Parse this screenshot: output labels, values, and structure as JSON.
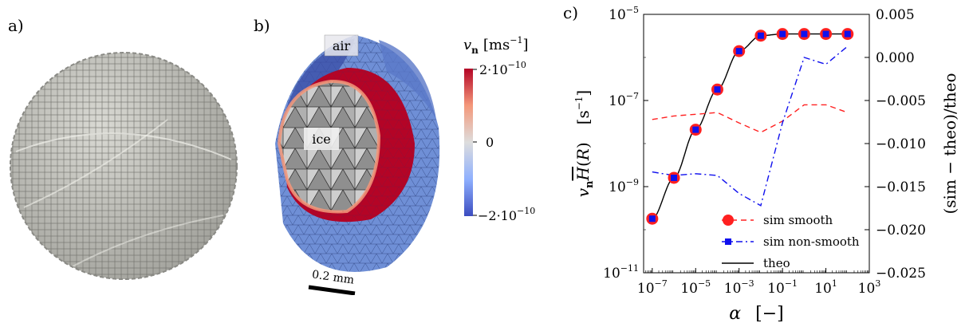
{
  "panels": {
    "a": {
      "label": "a)"
    },
    "b": {
      "label": "b)",
      "air_label": "air",
      "ice_label": "ice",
      "scale_bar_label": "0.2 mm",
      "colorbar": {
        "title_var": "v",
        "title_sub": "n",
        "title_unit": "[ms",
        "title_unit_exp": "−1",
        "title_unit_close": "]",
        "max_label": "2·10",
        "max_exp": "−10",
        "mid_label": "0",
        "min_label": "−2·10",
        "min_exp": "−10",
        "colors": [
          "#3b4cc0",
          "#8fb0fe",
          "#dddddd",
          "#f4987a",
          "#b40426"
        ]
      }
    },
    "c": {
      "label": "c)"
    }
  },
  "chart_data": {
    "type": "line",
    "x_scale": "log",
    "y_scale": "log",
    "x": [
      1e-07,
      1e-06,
      1e-05,
      0.0001,
      0.001,
      0.01,
      0.1,
      1,
      10,
      100
    ],
    "xlim": [
      4e-08,
      1000
    ],
    "ylim": [
      1e-11,
      1e-05
    ],
    "ylim_right": [
      -0.025,
      0.005
    ],
    "xlabel": "α   [−]",
    "ylabel": "v_n H(R)   [s⁻¹]",
    "ylabel_right": "(sim − theo)/theo",
    "x_ticks": [
      {
        "value": 1e-07,
        "base": "10",
        "exp": "−7"
      },
      {
        "value": 1e-05,
        "base": "10",
        "exp": "−5"
      },
      {
        "value": 0.001,
        "base": "10",
        "exp": "−3"
      },
      {
        "value": 0.1,
        "base": "10",
        "exp": "−1"
      },
      {
        "value": 10,
        "base": "10",
        "exp": "1"
      },
      {
        "value": 1000,
        "base": "10",
        "exp": "3"
      }
    ],
    "y_ticks": [
      {
        "value": 1e-05,
        "base": "10",
        "exp": "−5"
      },
      {
        "value": 1e-07,
        "base": "10",
        "exp": "−7"
      },
      {
        "value": 1e-09,
        "base": "10",
        "exp": "−9"
      },
      {
        "value": 1e-11,
        "base": "10",
        "exp": "−11"
      }
    ],
    "y_ticks_right": [
      {
        "value": 0.005,
        "label": "0.005"
      },
      {
        "value": 0.0,
        "label": "0.000"
      },
      {
        "value": -0.005,
        "label": "−0.005"
      },
      {
        "value": -0.01,
        "label": "−0.010"
      },
      {
        "value": -0.015,
        "label": "−0.015"
      },
      {
        "value": -0.02,
        "label": "−0.020"
      },
      {
        "value": -0.025,
        "label": "−0.025"
      }
    ],
    "series": [
      {
        "name": "sim smooth",
        "axis": "left",
        "style": "marker",
        "marker": "circle",
        "color": "#ff2020",
        "values": [
          1.8e-10,
          1.6e-09,
          2.1e-08,
          1.8e-07,
          1.4e-06,
          3.2e-06,
          3.5e-06,
          3.5e-06,
          3.5e-06,
          3.5e-06
        ]
      },
      {
        "name": "sim non-smooth",
        "axis": "left",
        "style": "marker",
        "marker": "square",
        "color": "#1010ee",
        "values": [
          1.8e-10,
          1.6e-09,
          2.1e-08,
          1.8e-07,
          1.4e-06,
          3.2e-06,
          3.5e-06,
          3.5e-06,
          3.5e-06,
          3.5e-06
        ]
      },
      {
        "name": "theo",
        "axis": "left",
        "style": "solid",
        "color": "#000000",
        "values": [
          1.8e-10,
          1.6e-09,
          2.1e-08,
          1.8e-07,
          1.4e-06,
          3.2e-06,
          3.5e-06,
          3.5e-06,
          3.5e-06,
          3.5e-06
        ]
      },
      {
        "name": "sim smooth rel. error",
        "axis": "right",
        "style": "dashed",
        "color": "#ff2020",
        "values": [
          -0.0072,
          -0.0068,
          -0.0066,
          -0.0064,
          -0.0076,
          -0.0087,
          -0.0074,
          -0.0055,
          -0.0055,
          -0.0064
        ]
      },
      {
        "name": "sim non-smooth rel. error",
        "axis": "right",
        "style": "dashdot",
        "color": "#1010ee",
        "values": [
          -0.0133,
          -0.0137,
          -0.0135,
          -0.0137,
          -0.0158,
          -0.0172,
          -0.0076,
          0.0,
          -0.0008,
          0.0013
        ]
      }
    ],
    "legend": [
      {
        "name": "sim smooth",
        "marker": "circle",
        "line": "dashed",
        "color": "#ff2020"
      },
      {
        "name": "sim non-smooth",
        "marker": "square",
        "line": "dashdot",
        "color": "#1010ee"
      },
      {
        "name": "theo",
        "marker": "none",
        "line": "solid",
        "color": "#000000"
      }
    ],
    "legend_position": "bottom-right",
    "grid": false
  }
}
